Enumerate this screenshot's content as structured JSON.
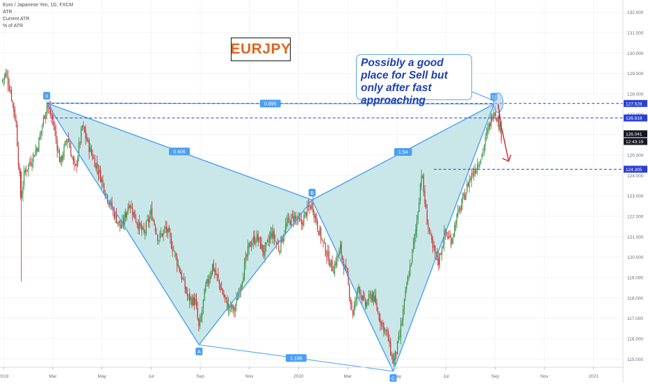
{
  "info": {
    "symbol_line": "Euro / Japanese Yen, 1D, FXCM",
    "indicators": [
      "ATR",
      "Current ATR",
      "% of ATR"
    ]
  },
  "title_box": "EURJPY",
  "callout": "Possibly a good place for Sell but only after fast approaching",
  "colors": {
    "pattern_line": "#4a9ff5",
    "pattern_fill": "#bfe3e5",
    "candle_up": "#2e8b3a",
    "candle_down": "#c62b2b",
    "dashed_line": "#2a3fd6",
    "title_text": "#e0661f",
    "arrow": "#d42020"
  },
  "chart_data": {
    "type": "candlestick",
    "y_axis_labels": [
      "132.000",
      "131.000",
      "130.000",
      "129.000",
      "128.000",
      "127.000",
      "126.000",
      "125.000",
      "124.000",
      "123.000",
      "122.000",
      "121.000",
      "120.000",
      "119.000",
      "118.000",
      "117.000",
      "116.000",
      "115.000"
    ],
    "ylim": [
      114.6,
      132.6
    ],
    "x_axis_labels": [
      {
        "label": "2019",
        "t": 0
      },
      {
        "label": "Mar",
        "t": 2
      },
      {
        "label": "May",
        "t": 4
      },
      {
        "label": "Jul",
        "t": 6
      },
      {
        "label": "Sep",
        "t": 8
      },
      {
        "label": "Nov",
        "t": 10
      },
      {
        "label": "2020",
        "t": 12
      },
      {
        "label": "Mar",
        "t": 14
      },
      {
        "label": "May",
        "t": 16
      },
      {
        "label": "Jul",
        "t": 18
      },
      {
        "label": "Sep",
        "t": 20
      },
      {
        "label": "Nov",
        "t": 22
      },
      {
        "label": "2021",
        "t": 24
      }
    ],
    "xlim": [
      -0.15,
      25.2
    ],
    "price_tags": [
      {
        "value": 127.528,
        "label": "127.528",
        "style": "blue"
      },
      {
        "value": 126.818,
        "label": "126.818",
        "style": "blue"
      },
      {
        "value": 126.041,
        "label": "126.041",
        "style": "dark"
      },
      {
        "label": "12:43:19",
        "style": "dark",
        "below": true
      },
      {
        "value": 124.305,
        "label": "124.305",
        "style": "blue"
      }
    ],
    "dashed_lines": [
      {
        "value": 127.528,
        "from_t": 1.75
      },
      {
        "value": 126.818,
        "from_t": 1.9
      },
      {
        "value": 124.305,
        "from_t": 17.5
      }
    ],
    "harmonic_pattern": {
      "points": [
        {
          "label": "X",
          "t": 1.75,
          "price": 127.55
        },
        {
          "label": "A",
          "t": 7.95,
          "price": 115.7
        },
        {
          "label": "B",
          "t": 12.55,
          "price": 122.8
        },
        {
          "label": "C",
          "t": 15.85,
          "price": 114.4
        },
        {
          "label": "D",
          "t": 19.95,
          "price": 127.5
        }
      ],
      "ratios": [
        {
          "label": "0.606",
          "from": "X",
          "to": "B"
        },
        {
          "label": "1.54",
          "from": "B",
          "to": "D"
        },
        {
          "label": "1.196",
          "from": "A",
          "to": "C"
        },
        {
          "label": "0.895",
          "from": "X",
          "to": "D"
        }
      ]
    },
    "price_path": [
      {
        "t": -0.1,
        "p": 128.6
      },
      {
        "t": 0.1,
        "p": 129.0
      },
      {
        "t": 0.3,
        "p": 128.0
      },
      {
        "t": 0.5,
        "p": 126.6
      },
      {
        "t": 0.7,
        "p": 122.8
      },
      {
        "t": 0.85,
        "p": 124.2
      },
      {
        "t": 1.1,
        "p": 124.7
      },
      {
        "t": 1.4,
        "p": 125.5
      },
      {
        "t": 1.75,
        "p": 127.5
      },
      {
        "t": 2.0,
        "p": 126.7
      },
      {
        "t": 2.3,
        "p": 124.6
      },
      {
        "t": 2.6,
        "p": 125.9
      },
      {
        "t": 2.9,
        "p": 124.2
      },
      {
        "t": 3.2,
        "p": 126.4
      },
      {
        "t": 3.5,
        "p": 125.3
      },
      {
        "t": 3.9,
        "p": 124.1
      },
      {
        "t": 4.2,
        "p": 123.0
      },
      {
        "t": 4.5,
        "p": 122.1
      },
      {
        "t": 4.8,
        "p": 121.4
      },
      {
        "t": 5.1,
        "p": 122.7
      },
      {
        "t": 5.4,
        "p": 121.8
      },
      {
        "t": 5.7,
        "p": 121.1
      },
      {
        "t": 6.0,
        "p": 122.2
      },
      {
        "t": 6.3,
        "p": 120.9
      },
      {
        "t": 6.6,
        "p": 121.4
      },
      {
        "t": 6.9,
        "p": 120.4
      },
      {
        "t": 7.2,
        "p": 119.2
      },
      {
        "t": 7.5,
        "p": 118.0
      },
      {
        "t": 7.8,
        "p": 117.8
      },
      {
        "t": 7.95,
        "p": 116.4
      },
      {
        "t": 8.2,
        "p": 118.4
      },
      {
        "t": 8.5,
        "p": 119.6
      },
      {
        "t": 8.8,
        "p": 118.6
      },
      {
        "t": 9.1,
        "p": 117.6
      },
      {
        "t": 9.4,
        "p": 117.4
      },
      {
        "t": 9.7,
        "p": 119.0
      },
      {
        "t": 10.0,
        "p": 120.6
      },
      {
        "t": 10.3,
        "p": 121.0
      },
      {
        "t": 10.6,
        "p": 120.2
      },
      {
        "t": 10.9,
        "p": 121.2
      },
      {
        "t": 11.2,
        "p": 120.4
      },
      {
        "t": 11.5,
        "p": 121.6
      },
      {
        "t": 11.8,
        "p": 122.0
      },
      {
        "t": 12.1,
        "p": 121.6
      },
      {
        "t": 12.3,
        "p": 122.2
      },
      {
        "t": 12.55,
        "p": 122.6
      },
      {
        "t": 12.8,
        "p": 121.4
      },
      {
        "t": 13.1,
        "p": 120.3
      },
      {
        "t": 13.4,
        "p": 119.4
      },
      {
        "t": 13.7,
        "p": 120.4
      },
      {
        "t": 14.0,
        "p": 118.8
      },
      {
        "t": 14.2,
        "p": 117.2
      },
      {
        "t": 14.45,
        "p": 118.6
      },
      {
        "t": 14.7,
        "p": 117.6
      },
      {
        "t": 15.0,
        "p": 118.2
      },
      {
        "t": 15.3,
        "p": 117.0
      },
      {
        "t": 15.6,
        "p": 116.2
      },
      {
        "t": 15.85,
        "p": 114.8
      },
      {
        "t": 16.1,
        "p": 116.0
      },
      {
        "t": 16.4,
        "p": 118.6
      },
      {
        "t": 16.6,
        "p": 120.0
      },
      {
        "t": 16.8,
        "p": 121.6
      },
      {
        "t": 17.0,
        "p": 124.2
      },
      {
        "t": 17.2,
        "p": 122.0
      },
      {
        "t": 17.45,
        "p": 120.4
      },
      {
        "t": 17.7,
        "p": 119.8
      },
      {
        "t": 17.95,
        "p": 121.2
      },
      {
        "t": 18.2,
        "p": 120.8
      },
      {
        "t": 18.45,
        "p": 122.0
      },
      {
        "t": 18.7,
        "p": 122.8
      },
      {
        "t": 18.95,
        "p": 123.8
      },
      {
        "t": 19.2,
        "p": 124.4
      },
      {
        "t": 19.45,
        "p": 125.0
      },
      {
        "t": 19.7,
        "p": 126.2
      },
      {
        "t": 19.95,
        "p": 127.3
      },
      {
        "t": 20.1,
        "p": 126.8
      },
      {
        "t": 20.25,
        "p": 126.0
      }
    ]
  }
}
